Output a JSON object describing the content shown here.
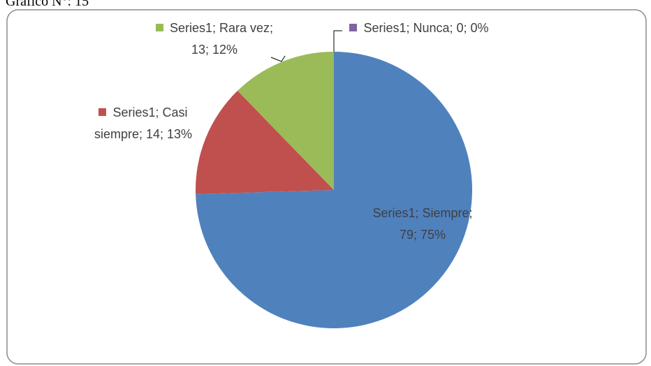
{
  "chart_data": {
    "type": "pie",
    "title": "Gráfico N°: 15",
    "categories": [
      "Siempre",
      "Casi siempre",
      "Rara vez",
      "Nunca"
    ],
    "values": [
      79,
      14,
      13,
      0
    ],
    "value_labels": [
      "Series1; Siempre; 79; 75%",
      "Series1; Casi siempre; 14; 13%",
      "Series1; Rara vez; 13; 12%",
      "Series1; Nunca; 0; 0%"
    ],
    "colors": [
      "#4f81bd",
      "#c0504d",
      "#9bbb59",
      "#8064a2"
    ]
  }
}
